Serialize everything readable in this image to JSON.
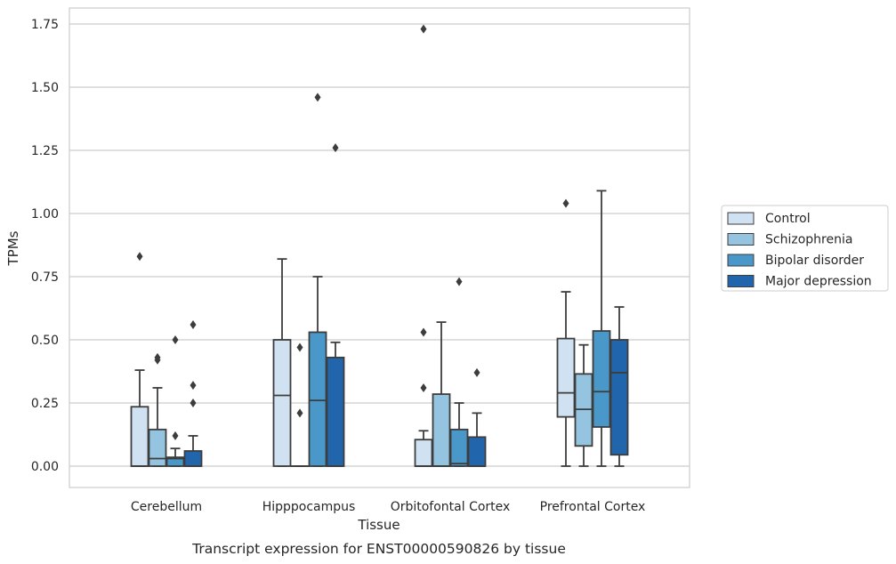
{
  "caption": "Transcript expression for ENST00000590826 by tissue",
  "chart_data": {
    "type": "box",
    "xlabel": "Tissue",
    "ylabel": "TPMs",
    "ylim": [
      -0.085,
      1.82
    ],
    "yticks": [
      0.0,
      0.25,
      0.5,
      0.75,
      1.0,
      1.25,
      1.5,
      1.75
    ],
    "ytick_labels": [
      "0.00",
      "0.25",
      "0.50",
      "0.75",
      "1.00",
      "1.25",
      "1.50",
      "1.75"
    ],
    "grid": "horizontal",
    "legend_position": "right",
    "categories": [
      "Cerebellum",
      "Hipppocampus",
      "Orbitofontal Cortex",
      "Prefrontal Cortex"
    ],
    "series": [
      {
        "name": "Control",
        "color": "#d0e1f2",
        "boxes": [
          {
            "whislo": 0.0,
            "q1": 0.0,
            "med": 0.0,
            "q3": 0.235,
            "whishi": 0.38,
            "fliers": [
              0.83
            ]
          },
          {
            "whislo": 0.0,
            "q1": 0.0,
            "med": 0.28,
            "q3": 0.5,
            "whishi": 0.82,
            "fliers": []
          },
          {
            "whislo": 0.0,
            "q1": 0.0,
            "med": 0.0,
            "q3": 0.105,
            "whishi": 0.14,
            "fliers": [
              0.31,
              0.53,
              1.73
            ]
          },
          {
            "whislo": 0.0,
            "q1": 0.195,
            "med": 0.29,
            "q3": 0.505,
            "whishi": 0.69,
            "fliers": [
              1.04
            ]
          }
        ]
      },
      {
        "name": "Schizophrenia",
        "color": "#94c4df",
        "boxes": [
          {
            "whislo": 0.0,
            "q1": 0.0,
            "med": 0.03,
            "q3": 0.145,
            "whishi": 0.31,
            "fliers": [
              0.42,
              0.43
            ]
          },
          {
            "whislo": 0.0,
            "q1": 0.0,
            "med": 0.0,
            "q3": 0.0,
            "whishi": 0.0,
            "fliers": [
              0.21,
              0.47
            ]
          },
          {
            "whislo": 0.0,
            "q1": 0.0,
            "med": 0.0,
            "q3": 0.285,
            "whishi": 0.57,
            "fliers": []
          },
          {
            "whislo": 0.0,
            "q1": 0.08,
            "med": 0.225,
            "q3": 0.365,
            "whishi": 0.48,
            "fliers": []
          }
        ]
      },
      {
        "name": "Bipolar disorder",
        "color": "#4a98c9",
        "boxes": [
          {
            "whislo": 0.0,
            "q1": 0.0,
            "med": 0.03,
            "q3": 0.035,
            "whishi": 0.07,
            "fliers": [
              0.12,
              0.5
            ]
          },
          {
            "whislo": 0.0,
            "q1": 0.0,
            "med": 0.26,
            "q3": 0.53,
            "whishi": 0.75,
            "fliers": [
              1.46
            ]
          },
          {
            "whislo": 0.0,
            "q1": 0.0,
            "med": 0.01,
            "q3": 0.145,
            "whishi": 0.25,
            "fliers": [
              0.73
            ]
          },
          {
            "whislo": 0.0,
            "q1": 0.155,
            "med": 0.295,
            "q3": 0.535,
            "whishi": 1.09,
            "fliers": []
          }
        ]
      },
      {
        "name": "Major depression",
        "color": "#2166ac",
        "boxes": [
          {
            "whislo": 0.0,
            "q1": 0.0,
            "med": 0.0,
            "q3": 0.06,
            "whishi": 0.12,
            "fliers": [
              0.25,
              0.32,
              0.56
            ]
          },
          {
            "whislo": 0.0,
            "q1": 0.0,
            "med": 0.0,
            "q3": 0.43,
            "whishi": 0.49,
            "fliers": [
              1.26
            ]
          },
          {
            "whislo": 0.0,
            "q1": 0.0,
            "med": 0.0,
            "q3": 0.115,
            "whishi": 0.21,
            "fliers": [
              0.37
            ]
          },
          {
            "whislo": 0.0,
            "q1": 0.045,
            "med": 0.37,
            "q3": 0.5,
            "whishi": 0.63,
            "fliers": []
          }
        ]
      }
    ]
  }
}
